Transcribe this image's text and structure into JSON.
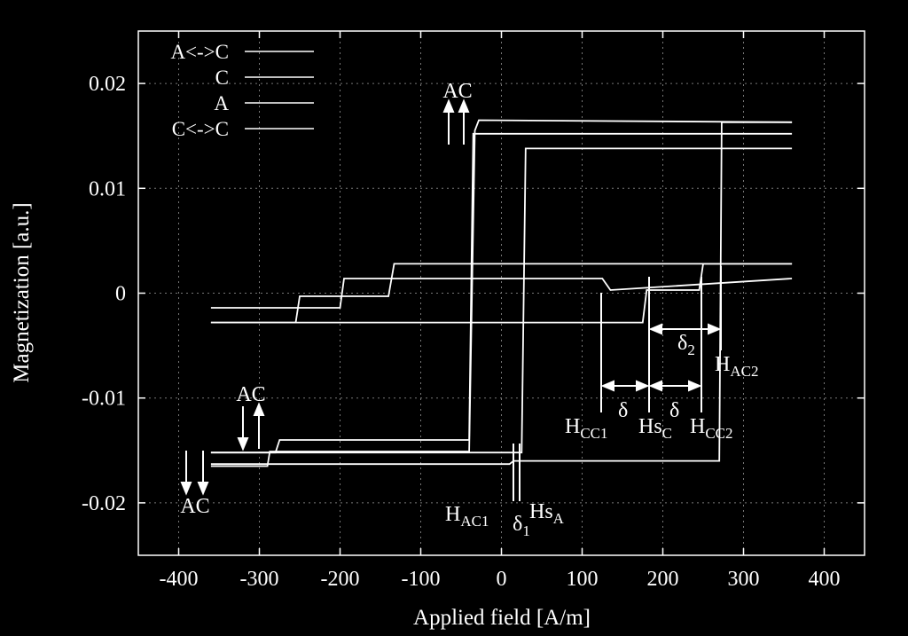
{
  "chart_data": {
    "type": "line",
    "title": "",
    "xlabel": "Applied field [A/m]",
    "ylabel": "Magnetization [a.u.]",
    "xlim": [
      -450,
      450
    ],
    "ylim": [
      -0.025,
      0.025
    ],
    "xticks": [
      -400,
      -300,
      -200,
      -100,
      0,
      100,
      200,
      300,
      400
    ],
    "yticks": [
      -0.02,
      -0.01,
      0,
      0.01,
      0.02
    ],
    "xtick_labels": [
      "-400",
      "-300",
      "-200",
      "-100",
      "0",
      "100",
      "200",
      "300",
      "400"
    ],
    "ytick_labels": [
      "-0.02",
      "-0.01",
      "0",
      "0.01",
      "0.02"
    ],
    "grid": true,
    "legend_position": "top-left",
    "series": [
      {
        "name": "A<->C",
        "color": "#ffffff",
        "x": [
          -360,
          -290,
          -287,
          -40,
          -33,
          -28,
          360
        ],
        "y": [
          -0.0165,
          -0.0165,
          -0.0151,
          -0.0151,
          0.0155,
          0.0165,
          0.0163
        ]
      },
      {
        "name": "C",
        "color": "#ffffff",
        "x": [
          -360,
          -255,
          -250,
          -140,
          -133,
          360
        ],
        "y": [
          -0.0028,
          -0.0028,
          -0.0003,
          -0.0003,
          0.0028,
          0.0028
        ]
      },
      {
        "name": "A",
        "color": "#ffffff",
        "x": [
          -360,
          -280,
          -275,
          -40,
          -35,
          360
        ],
        "y": [
          -0.0152,
          -0.0152,
          -0.014,
          -0.014,
          0.0152,
          0.0152
        ]
      },
      {
        "name": "C<->C",
        "color": "#ffffff",
        "x": [
          -360,
          -200,
          -195,
          125,
          135,
          360
        ],
        "y": [
          -0.0014,
          -0.0014,
          0.0014,
          0.0014,
          0.0003,
          0.0014
        ]
      },
      {
        "name": "",
        "color": "#ffffff",
        "x": [
          360,
          273,
          270,
          15,
          10,
          -360
        ],
        "y": [
          0.0163,
          0.0163,
          -0.016,
          -0.016,
          -0.0163,
          -0.0163
        ]
      },
      {
        "name": "",
        "color": "#ffffff",
        "x": [
          360,
          250,
          245,
          180,
          175,
          -360
        ],
        "y": [
          0.0028,
          0.0028,
          0.0003,
          0.0003,
          -0.0028,
          -0.0028
        ]
      },
      {
        "name": "",
        "color": "#ffffff",
        "x": [
          360,
          30,
          25,
          -360
        ],
        "y": [
          0.0138,
          0.0138,
          -0.0152,
          -0.0152
        ]
      }
    ],
    "annotations": {
      "ac_top": "AC",
      "ac_left_mid": "AC",
      "ac_left_bottom": "AC",
      "h_ac1": "H",
      "h_ac1_sub": "AC1",
      "delta1": "δ",
      "delta1_sub": "1",
      "hs_a": "Hs",
      "hs_a_sub": "A",
      "h_cc1": "H",
      "h_cc1_sub": "CC1",
      "delta_a": "δ",
      "hs_c": "Hs",
      "hs_c_sub": "C",
      "delta_b": "δ",
      "h_cc2": "H",
      "h_cc2_sub": "CC2",
      "delta2": "δ",
      "delta2_sub": "2",
      "h_ac2": "H",
      "h_ac2_sub": "AC2"
    }
  }
}
